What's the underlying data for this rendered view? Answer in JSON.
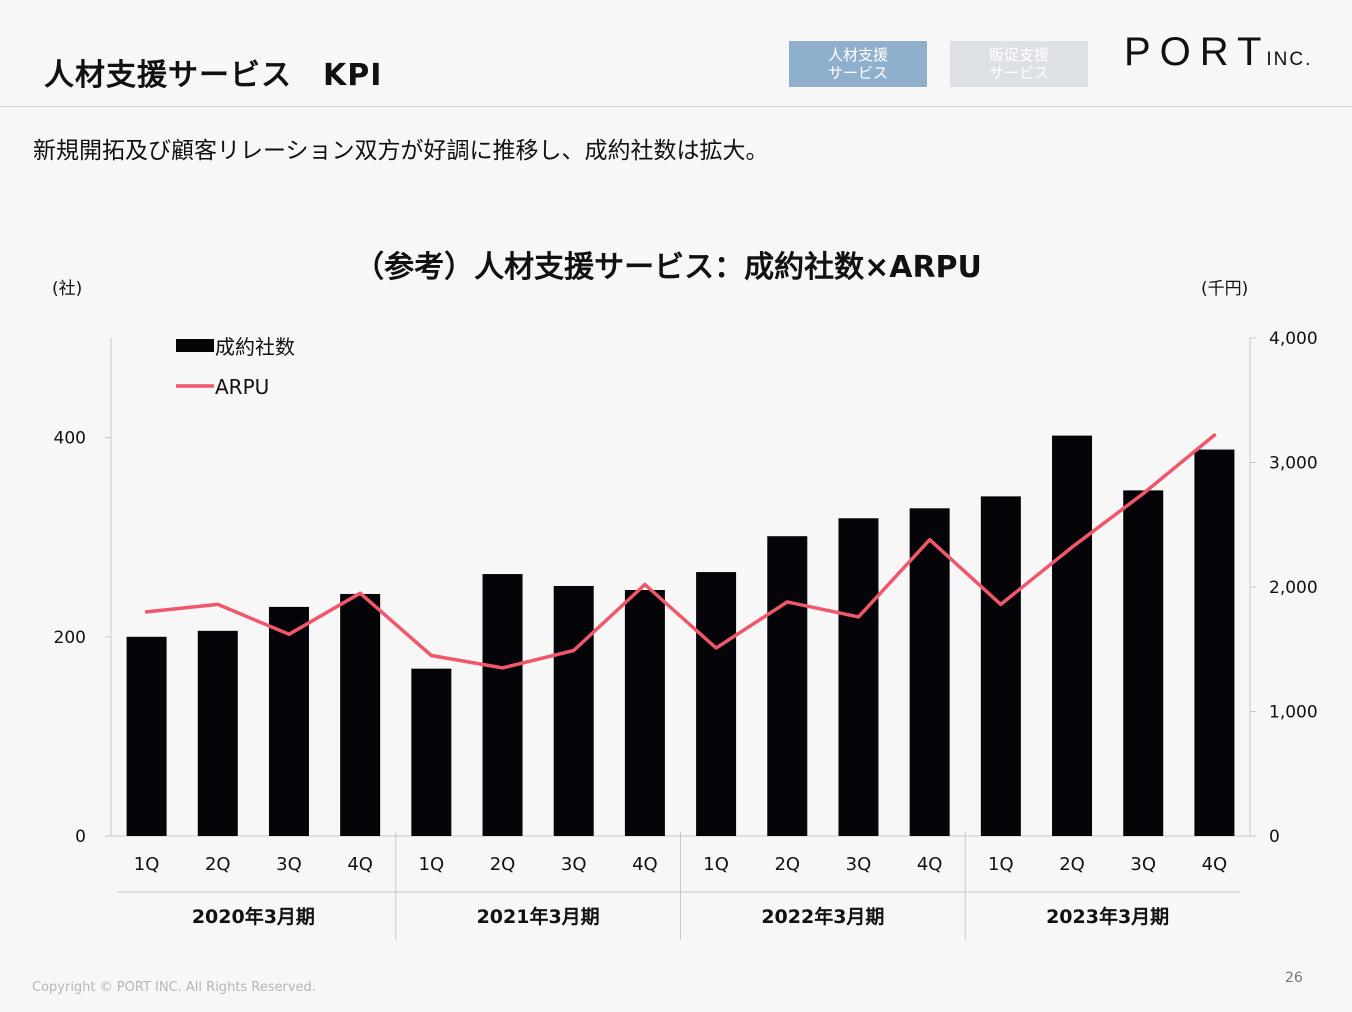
{
  "header": {
    "title": "人材支援サービス　KPI",
    "tabs": [
      {
        "line1": "人材支援",
        "line2": "サービス"
      },
      {
        "line1": "販促支援",
        "line2": "サービス"
      }
    ],
    "logo_main": "PORT",
    "logo_sub": "INC."
  },
  "lead_text": "新規開拓及び顧客リレーション双方が好調に推移し、成約社数は拡大。",
  "footer": {
    "copyright": "Copyright © PORT INC. All Rights Reserved.",
    "page_number": "26"
  },
  "colors": {
    "bar": "#050408",
    "line": "#f0576a",
    "tab_active": "#8fb0cc",
    "tab_inactive": "#dde1e6",
    "axis": "#c8c8c8"
  },
  "chart_data": {
    "type": "bar",
    "title": "（参考）人材支援サービス：成約社数×ARPU",
    "y_left_unit": "(社)",
    "y_right_unit": "(千円)",
    "y_left": {
      "min": 0,
      "max": 500,
      "ticks": [
        0,
        200,
        400
      ],
      "tick_labels": [
        "0",
        "200",
        "400"
      ]
    },
    "y_right": {
      "min": 0,
      "max": 4000,
      "ticks": [
        0,
        1000,
        2000,
        3000,
        4000
      ],
      "tick_labels": [
        "0",
        "1,000",
        "2,000",
        "3,000",
        "4,000"
      ]
    },
    "categories": [
      "1Q",
      "2Q",
      "3Q",
      "4Q",
      "1Q",
      "2Q",
      "3Q",
      "4Q",
      "1Q",
      "2Q",
      "3Q",
      "4Q",
      "1Q",
      "2Q",
      "3Q",
      "4Q"
    ],
    "groups": [
      {
        "label": "2020年3月期",
        "count": 4
      },
      {
        "label": "2021年3月期",
        "count": 4
      },
      {
        "label": "2022年3月期",
        "count": 4
      },
      {
        "label": "2023年3月期",
        "count": 4
      }
    ],
    "series": [
      {
        "name": "成約社数",
        "type": "bar",
        "axis": "left",
        "values": [
          200,
          206,
          230,
          243,
          168,
          263,
          251,
          247,
          265,
          301,
          319,
          329,
          341,
          402,
          347,
          388
        ]
      },
      {
        "name": "ARPU",
        "type": "line",
        "axis": "right",
        "values": [
          1800,
          1860,
          1620,
          1950,
          1450,
          1350,
          1490,
          2020,
          1510,
          1880,
          1760,
          2380,
          1860,
          2320,
          2750,
          3220
        ]
      }
    ],
    "legend_position": "top-left",
    "grid": false
  }
}
